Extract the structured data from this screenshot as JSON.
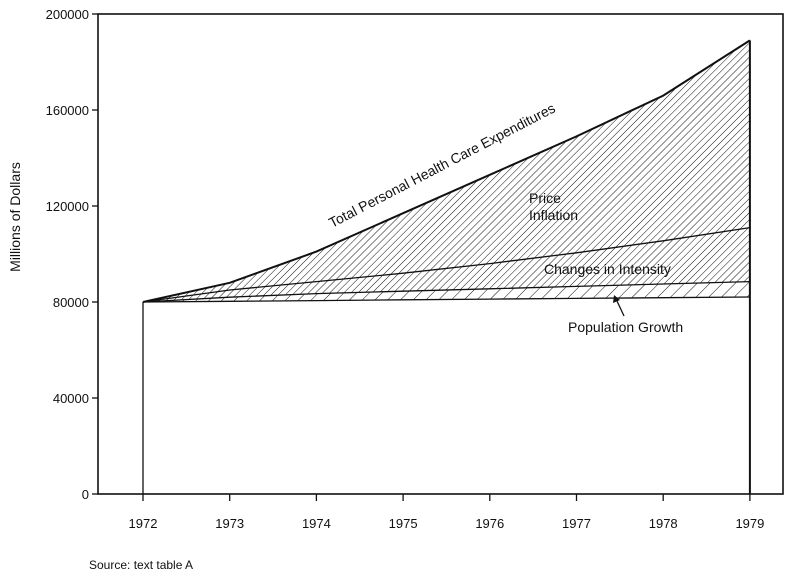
{
  "chart_data": {
    "type": "area",
    "title": "",
    "xlabel": "",
    "ylabel": "Millions of Dollars",
    "x": [
      1972,
      1973,
      1974,
      1975,
      1976,
      1977,
      1978,
      1979
    ],
    "ylim": [
      0,
      200000
    ],
    "yticks": [
      0,
      40000,
      80000,
      120000,
      160000,
      200000
    ],
    "series": [
      {
        "name": "Population Growth",
        "values": [
          80000,
          80300,
          80600,
          80900,
          81200,
          81500,
          81800,
          82100
        ]
      },
      {
        "name": "Changes in Intensity",
        "values": [
          80000,
          82000,
          83500,
          84500,
          85500,
          86500,
          87500,
          88500
        ]
      },
      {
        "name": "Price Inflation",
        "values": [
          80000,
          85000,
          88500,
          92000,
          96000,
          100500,
          105500,
          111000
        ]
      },
      {
        "name": "Total Personal Health Care Expenditures",
        "values": [
          80000,
          88000,
          101000,
          117000,
          133000,
          149000,
          166000,
          189000
        ]
      }
    ],
    "annotations": {
      "total": "Total Personal Health Care Expenditures",
      "price_line1": "Price",
      "price_line2": "Inflation",
      "intensity": "Changes in Intensity",
      "population": "Population Growth"
    },
    "grid": false,
    "legend": "none"
  },
  "source_note": "Source: text table A"
}
